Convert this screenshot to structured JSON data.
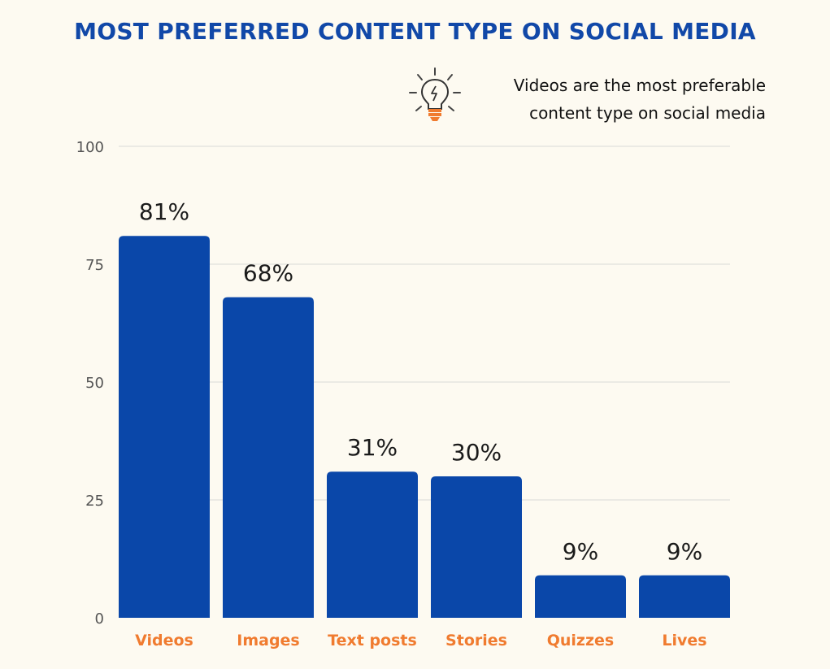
{
  "title": "MOST PREFERRED CONTENT TYPE ON SOCIAL MEDIA",
  "note": {
    "text": "Videos are the most preferable\ncontent type on social media",
    "icon": "lightbulb-icon"
  },
  "colors": {
    "bar": "#0a47a9",
    "title": "#1148a8",
    "category_label": "#f07b2f",
    "grid": "#d9d9d6",
    "background": "#fdfaf1"
  },
  "chart_data": {
    "type": "bar",
    "categories": [
      "Videos",
      "Images",
      "Text posts",
      "Stories",
      "Quizzes",
      "Lives"
    ],
    "values": [
      81,
      68,
      31,
      30,
      9,
      9
    ],
    "data_labels": [
      "81%",
      "68%",
      "31%",
      "30%",
      "9%",
      "9%"
    ],
    "title": "MOST PREFERRED CONTENT TYPE ON SOCIAL MEDIA",
    "xlabel": "",
    "ylabel": "",
    "ylim": [
      0,
      100
    ],
    "yticks": [
      0,
      25,
      50,
      75,
      100
    ],
    "grid": true
  }
}
